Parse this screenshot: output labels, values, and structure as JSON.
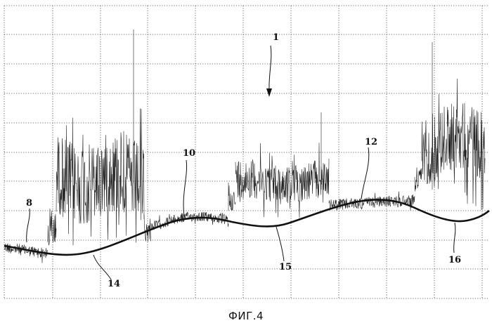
{
  "figure": {
    "caption": "ФИГ.4"
  },
  "reference_labels": {
    "arrow_label": "1",
    "label_8": "8",
    "label_10": "10",
    "label_12": "12",
    "label_14": "14",
    "label_15": "15",
    "label_16": "16"
  },
  "colors": {
    "ink": "#111111",
    "grid": "#444444",
    "background": "#ffffff"
  }
}
